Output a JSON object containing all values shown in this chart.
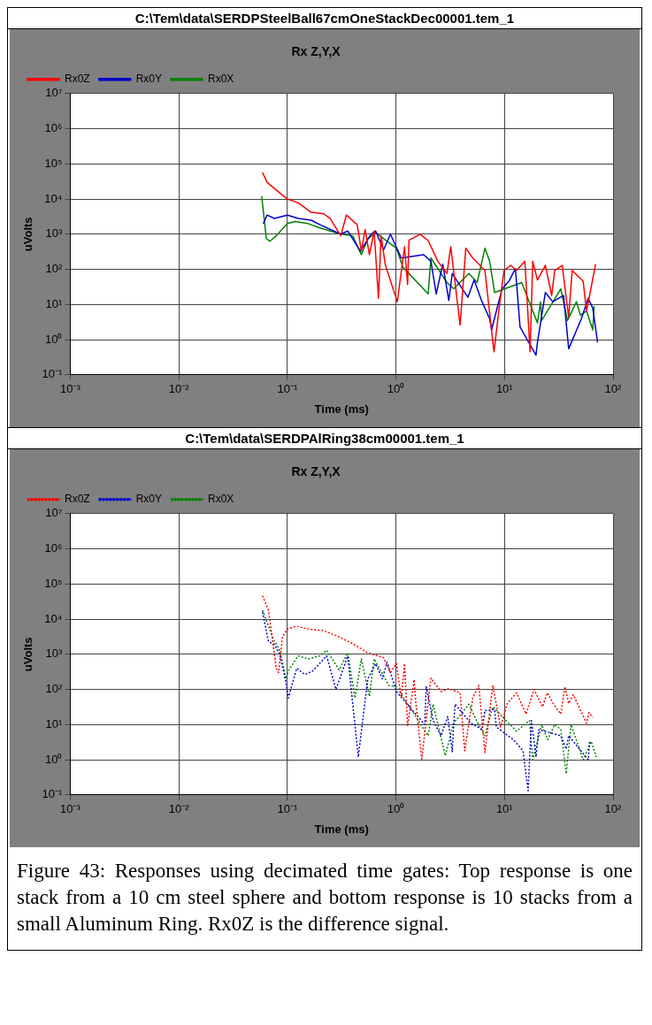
{
  "chart_data": [
    {
      "type": "line",
      "title": "C:\\Tem\\data\\SERDPSteelBall67cmOneStackDec00001.tem_1",
      "subtitle": "Rx Z,Y,X",
      "xlabel": "Time (ms)",
      "ylabel": "uVolts",
      "log": "xy",
      "grid": true,
      "legend": "top left",
      "marker": "none",
      "line_style": "solid",
      "xlim": [
        0.001,
        100
      ],
      "ylim": [
        0.1,
        10000000
      ],
      "xticks": [
        {
          "value": 0.001,
          "label": "10⁻³"
        },
        {
          "value": 0.01,
          "label": "10⁻²"
        },
        {
          "value": 0.1,
          "label": "10⁻¹"
        },
        {
          "value": 1,
          "label": "10⁰"
        },
        {
          "value": 10,
          "label": "10¹"
        },
        {
          "value": 100,
          "label": "10²"
        }
      ],
      "yticks": [
        {
          "value": 0.1,
          "label": "10⁻¹"
        },
        {
          "value": 1,
          "label": "10⁰"
        },
        {
          "value": 10,
          "label": "10¹"
        },
        {
          "value": 100,
          "label": "10²"
        },
        {
          "value": 1000,
          "label": "10³"
        },
        {
          "value": 10000,
          "label": "10⁴"
        },
        {
          "value": 100000,
          "label": "10⁵"
        },
        {
          "value": 1000000,
          "label": "10⁶"
        },
        {
          "value": 10000000,
          "label": "10⁷"
        }
      ],
      "series": [
        {
          "name": "Rx0Z",
          "color": "#ff0000",
          "x": [
            0.059,
            0.065,
            0.079,
            0.1,
            0.126,
            0.166,
            0.216,
            0.248,
            0.31,
            0.35,
            0.44,
            0.48,
            0.52,
            0.57,
            0.63,
            0.69,
            0.73,
            0.8,
            1.03,
            1.2,
            1.28,
            1.32,
            1.67,
            1.98,
            2.43,
            2.95,
            3.2,
            3.9,
            4.4,
            5.1,
            6.6,
            8,
            9,
            9.9,
            11.4,
            12.9,
            15.4,
            17.2,
            18.2,
            20.1,
            23.8,
            27.2,
            29,
            34,
            39,
            42,
            53,
            57,
            69
          ],
          "values": [
            57000,
            30000,
            18000,
            10000,
            7800,
            4200,
            3800,
            2800,
            900,
            3500,
            1850,
            330,
            1350,
            260,
            1230,
            15,
            900,
            130,
            12,
            440,
            37,
            670,
            1000,
            660,
            170,
            76,
            440,
            2.6,
            400,
            210,
            93,
            0.45,
            9.8,
            93,
            130,
            93,
            170,
            0.45,
            170,
            50,
            130,
            18,
            93,
            130,
            4.3,
            93,
            46,
            6.5,
            140
          ]
        },
        {
          "name": "Rx0Y",
          "color": "#0000cc",
          "x": [
            0.06,
            0.065,
            0.076,
            0.1,
            0.126,
            0.166,
            0.2,
            0.31,
            0.36,
            0.47,
            0.59,
            0.65,
            0.77,
            0.89,
            1.12,
            1.8,
            2.1,
            2.35,
            2.7,
            3.07,
            3.3,
            4.6,
            5.25,
            6.2,
            7.3,
            7.6,
            9.5,
            11,
            12.6,
            13.9,
            19.5,
            20.1,
            23.8,
            27.8,
            35,
            39,
            51,
            59,
            65,
            72
          ],
          "values": [
            2000,
            3500,
            2800,
            3500,
            2800,
            2500,
            1850,
            1000,
            1230,
            330,
            1000,
            1230,
            360,
            1000,
            210,
            260,
            170,
            20,
            140,
            13,
            76,
            16,
            50,
            12,
            3.9,
            1.9,
            28,
            46,
            105,
            2.3,
            0.36,
            0.83,
            22,
            12,
            18,
            0.55,
            3.9,
            15,
            7.9,
            0.83
          ]
        },
        {
          "name": "Rx0X",
          "color": "#008000",
          "x": [
            0.058,
            0.064,
            0.069,
            0.079,
            0.1,
            0.118,
            0.155,
            0.2,
            0.31,
            0.4,
            0.48,
            0.55,
            0.65,
            1.01,
            1.16,
            1.98,
            2.1,
            2.95,
            3.4,
            4.7,
            5.6,
            6.4,
            6.6,
            7.3,
            8.1,
            14.4,
            20.1,
            21.5,
            22,
            33,
            38,
            46,
            50,
            57,
            65,
            67
          ],
          "values": [
            12000,
            750,
            630,
            900,
            2000,
            2300,
            2000,
            1500,
            1000,
            900,
            260,
            730,
            1100,
            400,
            115,
            20,
            210,
            42,
            28,
            76,
            42,
            260,
            400,
            170,
            22,
            42,
            3,
            12,
            3.5,
            28,
            3.5,
            12,
            5,
            6.5,
            1.9,
            9
          ]
        }
      ]
    },
    {
      "type": "line",
      "title": "C:\\Tem\\data\\SERDPAlRing38cm00001.tem_1",
      "subtitle": "Rx Z,Y,X",
      "xlabel": "Time (ms)",
      "ylabel": "uVolts",
      "log": "xy",
      "grid": true,
      "legend": "top left",
      "marker": "none",
      "line_style": "dotted",
      "annotations": [
        "Figure 43:  Responses using decimated time gates: Top response is one stack from a 10 cm steel sphere and bottom response is 10 stacks from a small Aluminum Ring.  Rx0Z is the difference signal."
      ],
      "xlim": [
        0.001,
        100
      ],
      "ylim": [
        0.1,
        10000000
      ],
      "xticks": [
        {
          "value": 0.001,
          "label": "10⁻³"
        },
        {
          "value": 0.01,
          "label": "10⁻²"
        },
        {
          "value": 0.1,
          "label": "10⁻¹"
        },
        {
          "value": 1,
          "label": "10⁰"
        },
        {
          "value": 10,
          "label": "10¹"
        },
        {
          "value": 100,
          "label": "10²"
        }
      ],
      "yticks": [
        {
          "value": 0.1,
          "label": "10⁻¹"
        },
        {
          "value": 1,
          "label": "10⁰"
        },
        {
          "value": 10,
          "label": "10¹"
        },
        {
          "value": 100,
          "label": "10²"
        },
        {
          "value": 1000,
          "label": "10³"
        },
        {
          "value": 10000,
          "label": "10⁴"
        },
        {
          "value": 100000,
          "label": "10⁵"
        },
        {
          "value": 1000000,
          "label": "10⁶"
        },
        {
          "value": 10000000,
          "label": "10⁷"
        }
      ],
      "series": [
        {
          "name": "Rx0Z",
          "color": "#ff0000",
          "x": [
            0.059,
            0.067,
            0.079,
            0.083,
            0.09,
            0.1,
            0.122,
            0.155,
            0.216,
            0.3,
            0.4,
            0.55,
            0.77,
            0.89,
            1.01,
            1.12,
            1.2,
            1.28,
            1.47,
            1.52,
            1.73,
            2.1,
            2.6,
            3.07,
            3.9,
            4.3,
            5.1,
            5.8,
            6.6,
            7.8,
            9.2,
            10.6,
            12.9,
            15.8,
            18.7,
            22.4,
            24.8,
            28,
            33,
            36,
            39,
            43,
            57,
            60,
            65
          ],
          "values": [
            46000,
            18000,
            400,
            300,
            3100,
            5200,
            6300,
            5200,
            4700,
            3100,
            2000,
            1100,
            800,
            300,
            550,
            57,
            550,
            9,
            190,
            47,
            1.05,
            210,
            87,
            105,
            80,
            1.8,
            57,
            130,
            1.6,
            130,
            8.6,
            40,
            80,
            20,
            100,
            32,
            80,
            40,
            20,
            120,
            40,
            71,
            11,
            22,
            16
          ]
        },
        {
          "name": "Rx0Y",
          "color": "#0000cc",
          "x": [
            0.059,
            0.067,
            0.076,
            0.085,
            0.097,
            0.102,
            0.122,
            0.145,
            0.17,
            0.23,
            0.28,
            0.36,
            0.45,
            0.55,
            0.65,
            0.75,
            0.83,
            1.01,
            1.84,
            1.9,
            2.2,
            2.6,
            3,
            3.3,
            3.5,
            4.9,
            6.2,
            6.6,
            8.1,
            8.4,
            12.1,
            14.8,
            16.5,
            17.7,
            19.5,
            20.7,
            33,
            37,
            39,
            59,
            61
          ],
          "values": [
            16000,
            2300,
            1900,
            1000,
            160,
            57,
            400,
            265,
            330,
            900,
            100,
            890,
            1.2,
            200,
            540,
            200,
            600,
            87,
            10,
            120,
            13,
            4.8,
            17,
            1.7,
            38,
            11,
            7.2,
            25,
            27,
            8.5,
            3.7,
            1.8,
            0.13,
            13,
            1.2,
            7.2,
            4.8,
            2,
            4.8,
            1,
            3.6
          ]
        },
        {
          "name": "Rx0X",
          "color": "#008000",
          "x": [
            0.059,
            0.074,
            0.085,
            0.097,
            0.103,
            0.126,
            0.155,
            0.2,
            0.23,
            0.3,
            0.36,
            0.42,
            0.48,
            0.57,
            0.63,
            0.86,
            1.01,
            1.98,
            2.2,
            2.85,
            3.4,
            4.7,
            5.8,
            6.6,
            7.8,
            12.9,
            17,
            18.2,
            22,
            25,
            29,
            33,
            37,
            41,
            53,
            63,
            70
          ],
          "values": [
            18000,
            2800,
            1300,
            200,
            360,
            900,
            740,
            900,
            1300,
            360,
            1100,
            57,
            740,
            63,
            740,
            130,
            120,
            4.8,
            38,
            1.3,
            11,
            38,
            9.5,
            4.8,
            32,
            6.5,
            13,
            1,
            10,
            3.7,
            10,
            7.2,
            0.4,
            10,
            1,
            3.3,
            1.2
          ]
        }
      ]
    }
  ]
}
